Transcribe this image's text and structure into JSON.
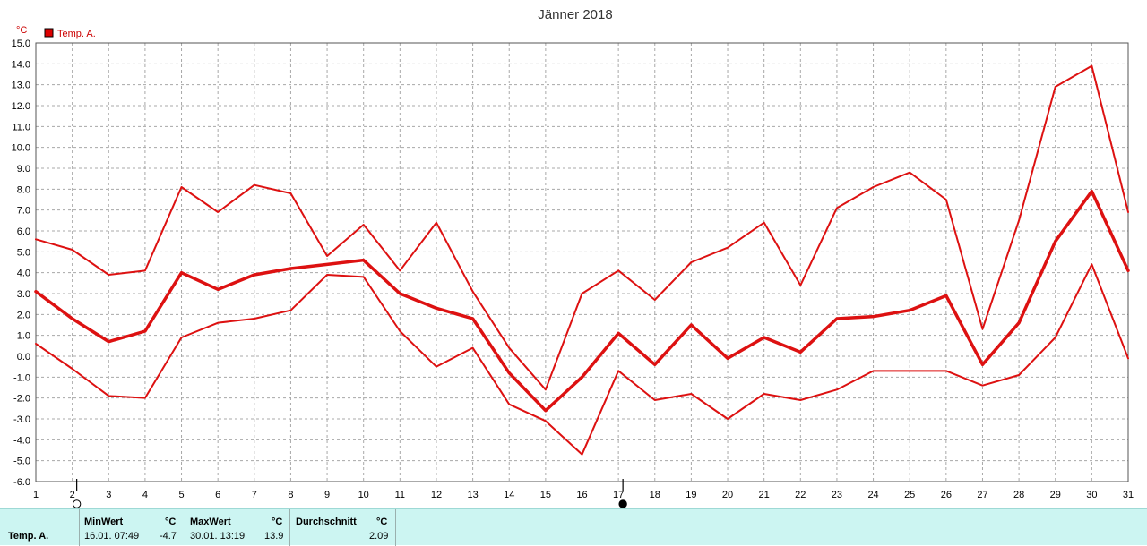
{
  "chart_data": {
    "type": "line",
    "title": "Jänner 2018",
    "ylabel": "°C",
    "legend": "Temp. A.",
    "legend_color": "#dd0000",
    "line_color": "#dd1111",
    "ylim": [
      -6.0,
      15.0
    ],
    "yticks": [
      "15.0",
      "14.0",
      "13.0",
      "12.0",
      "11.0",
      "10.0",
      "9.0",
      "8.0",
      "7.0",
      "6.0",
      "5.0",
      "4.0",
      "3.0",
      "2.0",
      "1.0",
      "0.0",
      "-1.0",
      "-2.0",
      "-3.0",
      "-4.0",
      "-5.0",
      "-6.0"
    ],
    "x": [
      1,
      2,
      3,
      4,
      5,
      6,
      7,
      8,
      9,
      10,
      11,
      12,
      13,
      14,
      15,
      16,
      17,
      18,
      19,
      20,
      21,
      22,
      23,
      24,
      25,
      26,
      27,
      28,
      29,
      30,
      31
    ],
    "grid": true,
    "moon_marks": [
      {
        "day": 2,
        "phase": "full-moon"
      },
      {
        "day": 17,
        "phase": "new-moon"
      }
    ],
    "series": [
      {
        "stat": "max",
        "values": [
          5.6,
          5.1,
          3.9,
          4.1,
          8.1,
          6.9,
          8.2,
          7.8,
          4.8,
          6.3,
          4.1,
          6.4,
          3.1,
          0.4,
          -1.6,
          3.0,
          4.1,
          2.7,
          4.5,
          5.2,
          6.4,
          3.4,
          7.1,
          8.1,
          8.8,
          7.5,
          1.3,
          6.5,
          12.9,
          13.9,
          6.9
        ]
      },
      {
        "stat": "avg",
        "values": [
          3.1,
          1.8,
          0.7,
          1.2,
          4.0,
          3.2,
          3.9,
          4.2,
          4.4,
          4.6,
          3.0,
          2.3,
          1.8,
          -0.8,
          -2.6,
          -1.0,
          1.1,
          -0.4,
          1.5,
          -0.1,
          0.9,
          0.2,
          1.8,
          1.9,
          2.2,
          2.9,
          -0.4,
          1.6,
          5.5,
          7.9,
          4.1
        ]
      },
      {
        "stat": "min",
        "values": [
          0.6,
          -0.6,
          -1.9,
          -2.0,
          0.9,
          1.6,
          1.8,
          2.2,
          3.9,
          3.8,
          1.2,
          -0.5,
          0.4,
          -2.3,
          -3.1,
          -4.7,
          -0.7,
          -2.1,
          -1.8,
          -3.0,
          -1.8,
          -2.1,
          -1.6,
          -0.7,
          -0.7,
          -0.7,
          -1.4,
          -0.9,
          0.9,
          4.4,
          -0.1
        ]
      }
    ]
  },
  "footer": {
    "row_label": "Temp. A.",
    "min_label": "MinWert",
    "min_unit": "°C",
    "min_datetime": "16.01.  07:49",
    "min_value": "-4.7",
    "max_label": "MaxWert",
    "max_unit": "°C",
    "max_datetime": "30.01.  13:19",
    "max_value": "13.9",
    "avg_label": "Durchschnitt",
    "avg_unit": "°C",
    "avg_value": "2.09"
  }
}
